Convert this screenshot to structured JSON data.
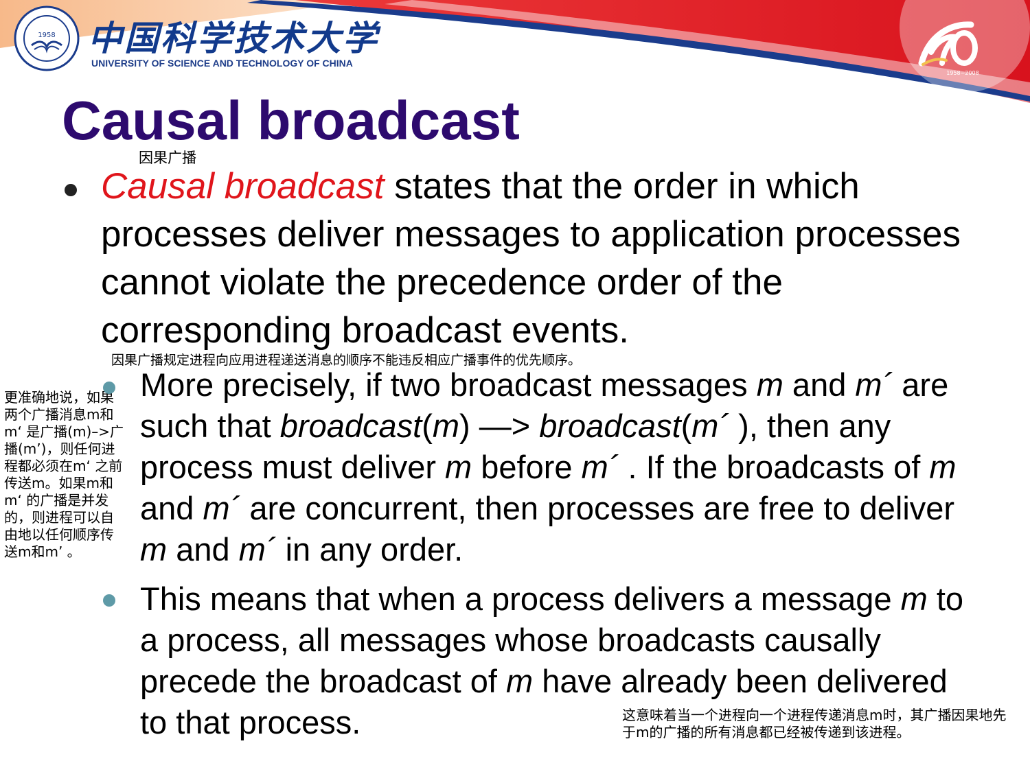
{
  "header": {
    "university_cn": "中国科学技术大学",
    "university_en": "UNIVERSITY OF SCIENCE AND TECHNOLOGY OF CHINA",
    "seal_year": "1958",
    "anniversary_years": "1958~2008",
    "banner_colors": {
      "red": "#e5222a",
      "blue": "#1b3c8c",
      "orange": "#f5a35a"
    }
  },
  "slide": {
    "title": "Causal broadcast",
    "title_note": "因果广播",
    "bullet1": {
      "term": "Causal broadcast",
      "rest": " states that the order in which processes deliver messages to application processes cannot violate the precedence order of the corresponding broadcast events."
    },
    "bullet1_note": "因果广播规定进程向应用进程递送消息的顺序不能违反相应广播事件的优先顺序。",
    "bullet2": {
      "t1": "More precisely, if two broadcast messages ",
      "v1": "m",
      "t2": " and ",
      "v2": "m´",
      "t3": " are such that ",
      "v3": "broadcast",
      "t4": "(",
      "v4": "m",
      "t5": ") —> ",
      "v5": "broadcast",
      "t6": "(",
      "v6": "m´",
      "t7": " ), then any process must deliver ",
      "v7": "m",
      "t8": " before ",
      "v8": "m´",
      "t9": " . If the broadcasts of ",
      "v9": "m",
      "t10": " and ",
      "v10": "m´",
      "t11": " are concurrent, then processes are free to deliver ",
      "v11": "m",
      "t12": " and ",
      "v12": "m´",
      "t13": " in any order."
    },
    "bullet2_note": "更准确地说，如果两个广播消息m和m‘ 是广播(m)–>广播(m’)，则任何进程都必须在m‘ 之前传送m。如果m和m‘ 的广播是并发的，则进程可以自由地以任何顺序传送m和m’ 。",
    "bullet3": {
      "t1": "This means that when a process delivers a message ",
      "v1": "m",
      "t2": " to a process, all messages whose broadcasts causally precede the broadcast of ",
      "v2": "m",
      "t3": " have already been delivered to that process."
    },
    "bullet3_note": "这意味着当一个进程向一个进程传递消息m时，其广播因果地先于m的广播的所有消息都已经被传递到该进程。"
  }
}
